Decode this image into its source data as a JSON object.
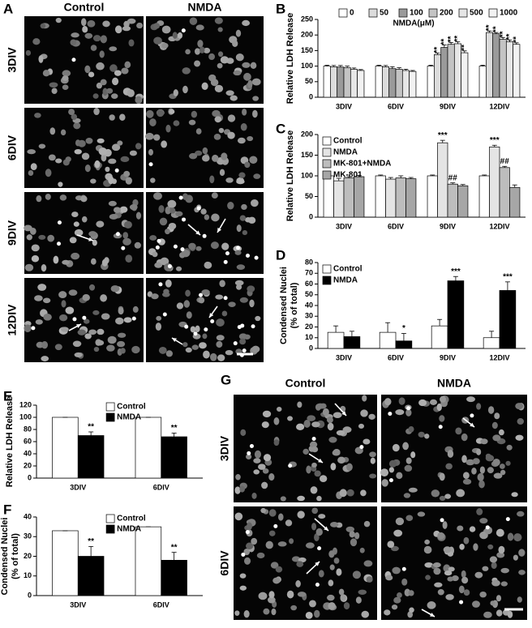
{
  "figure_a": {
    "panel_label": "A",
    "columns": [
      "Control",
      "NMDA"
    ],
    "rows": [
      "3DIV",
      "6DIV",
      "9DIV",
      "12DIV"
    ]
  },
  "figure_g": {
    "panel_label": "G",
    "columns": [
      "Control",
      "NMDA"
    ],
    "rows": [
      "3DIV",
      "6DIV"
    ]
  },
  "chart_data": [
    {
      "type": "bar",
      "panel_label": "B",
      "ylabel": [
        "Relative LDH Release"
      ],
      "legend": "top-row",
      "legend_title": "NMDA(μM)",
      "categories": [
        "3DIV",
        "6DIV",
        "9DIV",
        "12DIV"
      ],
      "ylim": [
        0,
        250
      ],
      "yticks": [
        0,
        50,
        100,
        150,
        200,
        250
      ],
      "series": [
        {
          "name": "0",
          "color": "#ffffff",
          "values": [
            100,
            100,
            100,
            100
          ],
          "errors": [
            3,
            3,
            3,
            3
          ],
          "significance": [
            null,
            null,
            null,
            null
          ]
        },
        {
          "name": "50",
          "color": "#dcdcdc",
          "values": [
            98,
            98,
            137,
            208
          ],
          "errors": [
            4,
            4,
            5,
            5
          ],
          "significance": [
            null,
            null,
            "**",
            "**"
          ]
        },
        {
          "name": "100",
          "color": "#9a9a9a",
          "values": [
            97,
            92,
            160,
            204
          ],
          "errors": [
            5,
            6,
            8,
            4
          ],
          "significance": [
            null,
            null,
            "**",
            "**"
          ]
        },
        {
          "name": "200",
          "color": "#c4c4c4",
          "values": [
            95,
            90,
            170,
            186
          ],
          "errors": [
            5,
            5,
            6,
            6
          ],
          "significance": [
            null,
            null,
            "**",
            "**"
          ]
        },
        {
          "name": "500",
          "color": "#e6e6e6",
          "values": [
            90,
            86,
            172,
            178
          ],
          "errors": [
            4,
            4,
            6,
            6
          ],
          "significance": [
            null,
            null,
            "**",
            "**"
          ]
        },
        {
          "name": "1000",
          "color": "#f2f2f2",
          "values": [
            86,
            83,
            143,
            170
          ],
          "errors": [
            3,
            3,
            6,
            5
          ],
          "significance": [
            null,
            null,
            "**",
            "**"
          ]
        }
      ]
    },
    {
      "type": "bar",
      "panel_label": "C",
      "ylabel": [
        "Relative LDH Release"
      ],
      "legend": "top-left",
      "categories": [
        "3DIV",
        "6DIV",
        "9DIV",
        "12DIV"
      ],
      "ylim": [
        0,
        200
      ],
      "yticks": [
        0,
        50,
        100,
        150,
        200
      ],
      "series": [
        {
          "name": "Control",
          "color": "#ffffff",
          "values": [
            100,
            100,
            100,
            100
          ],
          "errors": [
            2,
            2,
            2,
            2
          ],
          "significance": [
            null,
            null,
            null,
            null
          ]
        },
        {
          "name": "NMDA",
          "color": "#e4e4e4",
          "values": [
            88,
            92,
            180,
            170
          ],
          "errors": [
            6,
            4,
            6,
            4
          ],
          "significance": [
            null,
            null,
            "***",
            "***"
          ]
        },
        {
          "name": "MK-801+NMDA",
          "color": "#bdbdbd",
          "values": [
            95,
            95,
            80,
            120
          ],
          "errors": [
            3,
            5,
            3,
            3
          ],
          "significance": [
            null,
            null,
            "##",
            "##"
          ]
        },
        {
          "name": "MK-801",
          "color": "#a6a6a6",
          "values": [
            98,
            93,
            76,
            72
          ],
          "errors": [
            3,
            3,
            3,
            6
          ],
          "significance": [
            null,
            null,
            null,
            null
          ]
        }
      ]
    },
    {
      "type": "bar",
      "panel_label": "D",
      "ylabel": [
        "Condensed Nuclei",
        "(% of total)"
      ],
      "legend": "top-left",
      "categories": [
        "3DIV",
        "6DIV",
        "9DIV",
        "12DIV"
      ],
      "ylim": [
        0,
        80
      ],
      "yticks": [
        0,
        10,
        20,
        30,
        40,
        50,
        60,
        70,
        80
      ],
      "series": [
        {
          "name": "Control",
          "color": "#ffffff",
          "values": [
            15,
            15,
            21,
            10
          ],
          "errors": [
            6,
            9,
            6,
            6
          ],
          "significance": [
            null,
            null,
            null,
            null
          ]
        },
        {
          "name": "NMDA",
          "color": "#000000",
          "values": [
            11,
            7,
            63,
            54
          ],
          "errors": [
            5,
            7,
            4,
            8
          ],
          "significance": [
            null,
            "*",
            "***",
            "***"
          ]
        }
      ]
    },
    {
      "type": "bar",
      "panel_label": "E",
      "ylabel": [
        "Relative LDH Release"
      ],
      "legend": "top-center",
      "categories": [
        "3DIV",
        "6DIV"
      ],
      "ylim": [
        0,
        120
      ],
      "yticks": [
        0,
        20,
        40,
        60,
        80,
        100,
        120
      ],
      "series": [
        {
          "name": "Control",
          "color": "#ffffff",
          "values": [
            100,
            100
          ],
          "errors": [
            0,
            0
          ],
          "significance": [
            null,
            null
          ]
        },
        {
          "name": "NMDA",
          "color": "#000000",
          "values": [
            70,
            68
          ],
          "errors": [
            6,
            6
          ],
          "significance": [
            "**",
            "**"
          ]
        }
      ]
    },
    {
      "type": "bar",
      "panel_label": "F",
      "ylabel": [
        "Condensed Nuclei",
        "(% of total)"
      ],
      "legend": "top-center",
      "categories": [
        "3DIV",
        "6DIV"
      ],
      "ylim": [
        0,
        40
      ],
      "yticks": [
        0,
        10,
        20,
        30,
        40
      ],
      "series": [
        {
          "name": "Control",
          "color": "#ffffff",
          "values": [
            33,
            35
          ],
          "errors": [
            0,
            0
          ],
          "significance": [
            null,
            null
          ]
        },
        {
          "name": "NMDA",
          "color": "#000000",
          "values": [
            20,
            18
          ],
          "errors": [
            5,
            4
          ],
          "significance": [
            "**",
            "**"
          ]
        }
      ]
    }
  ]
}
